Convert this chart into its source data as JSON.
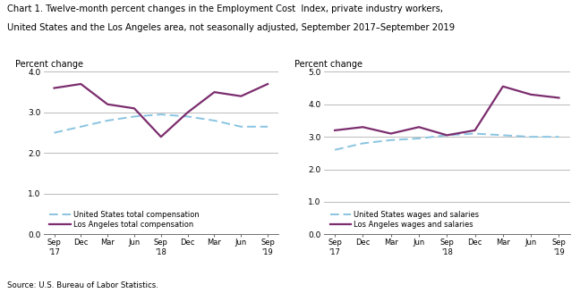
{
  "title_line1": "Chart 1. Twelve-month percent changes in the Employment Cost  Index, private industry workers,",
  "title_line2": "United States and the Los Angeles area, not seasonally adjusted, September 2017–September 2019",
  "source": "Source: U.S. Bureau of Labor Statistics.",
  "x_labels": [
    "Sep\n'17",
    "Dec",
    "Mar",
    "Jun",
    "Sep\n'18",
    "Dec",
    "Mar",
    "Jun",
    "Sep\n'19"
  ],
  "left_chart": {
    "ylabel": "Percent change",
    "ylim": [
      0.0,
      4.0
    ],
    "yticks": [
      0.0,
      1.0,
      2.0,
      3.0,
      4.0
    ],
    "us_vals": [
      2.5,
      2.65,
      2.8,
      2.9,
      2.95,
      2.9,
      2.8,
      2.65,
      2.65
    ],
    "la_vals": [
      3.6,
      3.7,
      3.2,
      3.1,
      2.4,
      3.0,
      3.5,
      3.4,
      3.7
    ],
    "us_label": "United States total compensation",
    "la_label": "Los Angeles total compensation"
  },
  "right_chart": {
    "ylabel": "Percent change",
    "ylim": [
      0.0,
      5.0
    ],
    "yticks": [
      0.0,
      1.0,
      2.0,
      3.0,
      4.0,
      5.0
    ],
    "us_vals": [
      2.6,
      2.8,
      2.9,
      2.95,
      3.05,
      3.1,
      3.05,
      3.0,
      3.0
    ],
    "la_vals": [
      3.2,
      3.3,
      3.1,
      3.3,
      3.05,
      3.2,
      4.55,
      4.3,
      4.2
    ],
    "us_label": "United States wages and salaries",
    "la_label": "Los Angeles wages and salaries"
  },
  "us_color": "#89C4E1",
  "la_color": "#7B2D6E",
  "us_lw": 1.4,
  "la_lw": 1.6,
  "grid_color": "#b0b0b0",
  "bg_color": "#ffffff"
}
